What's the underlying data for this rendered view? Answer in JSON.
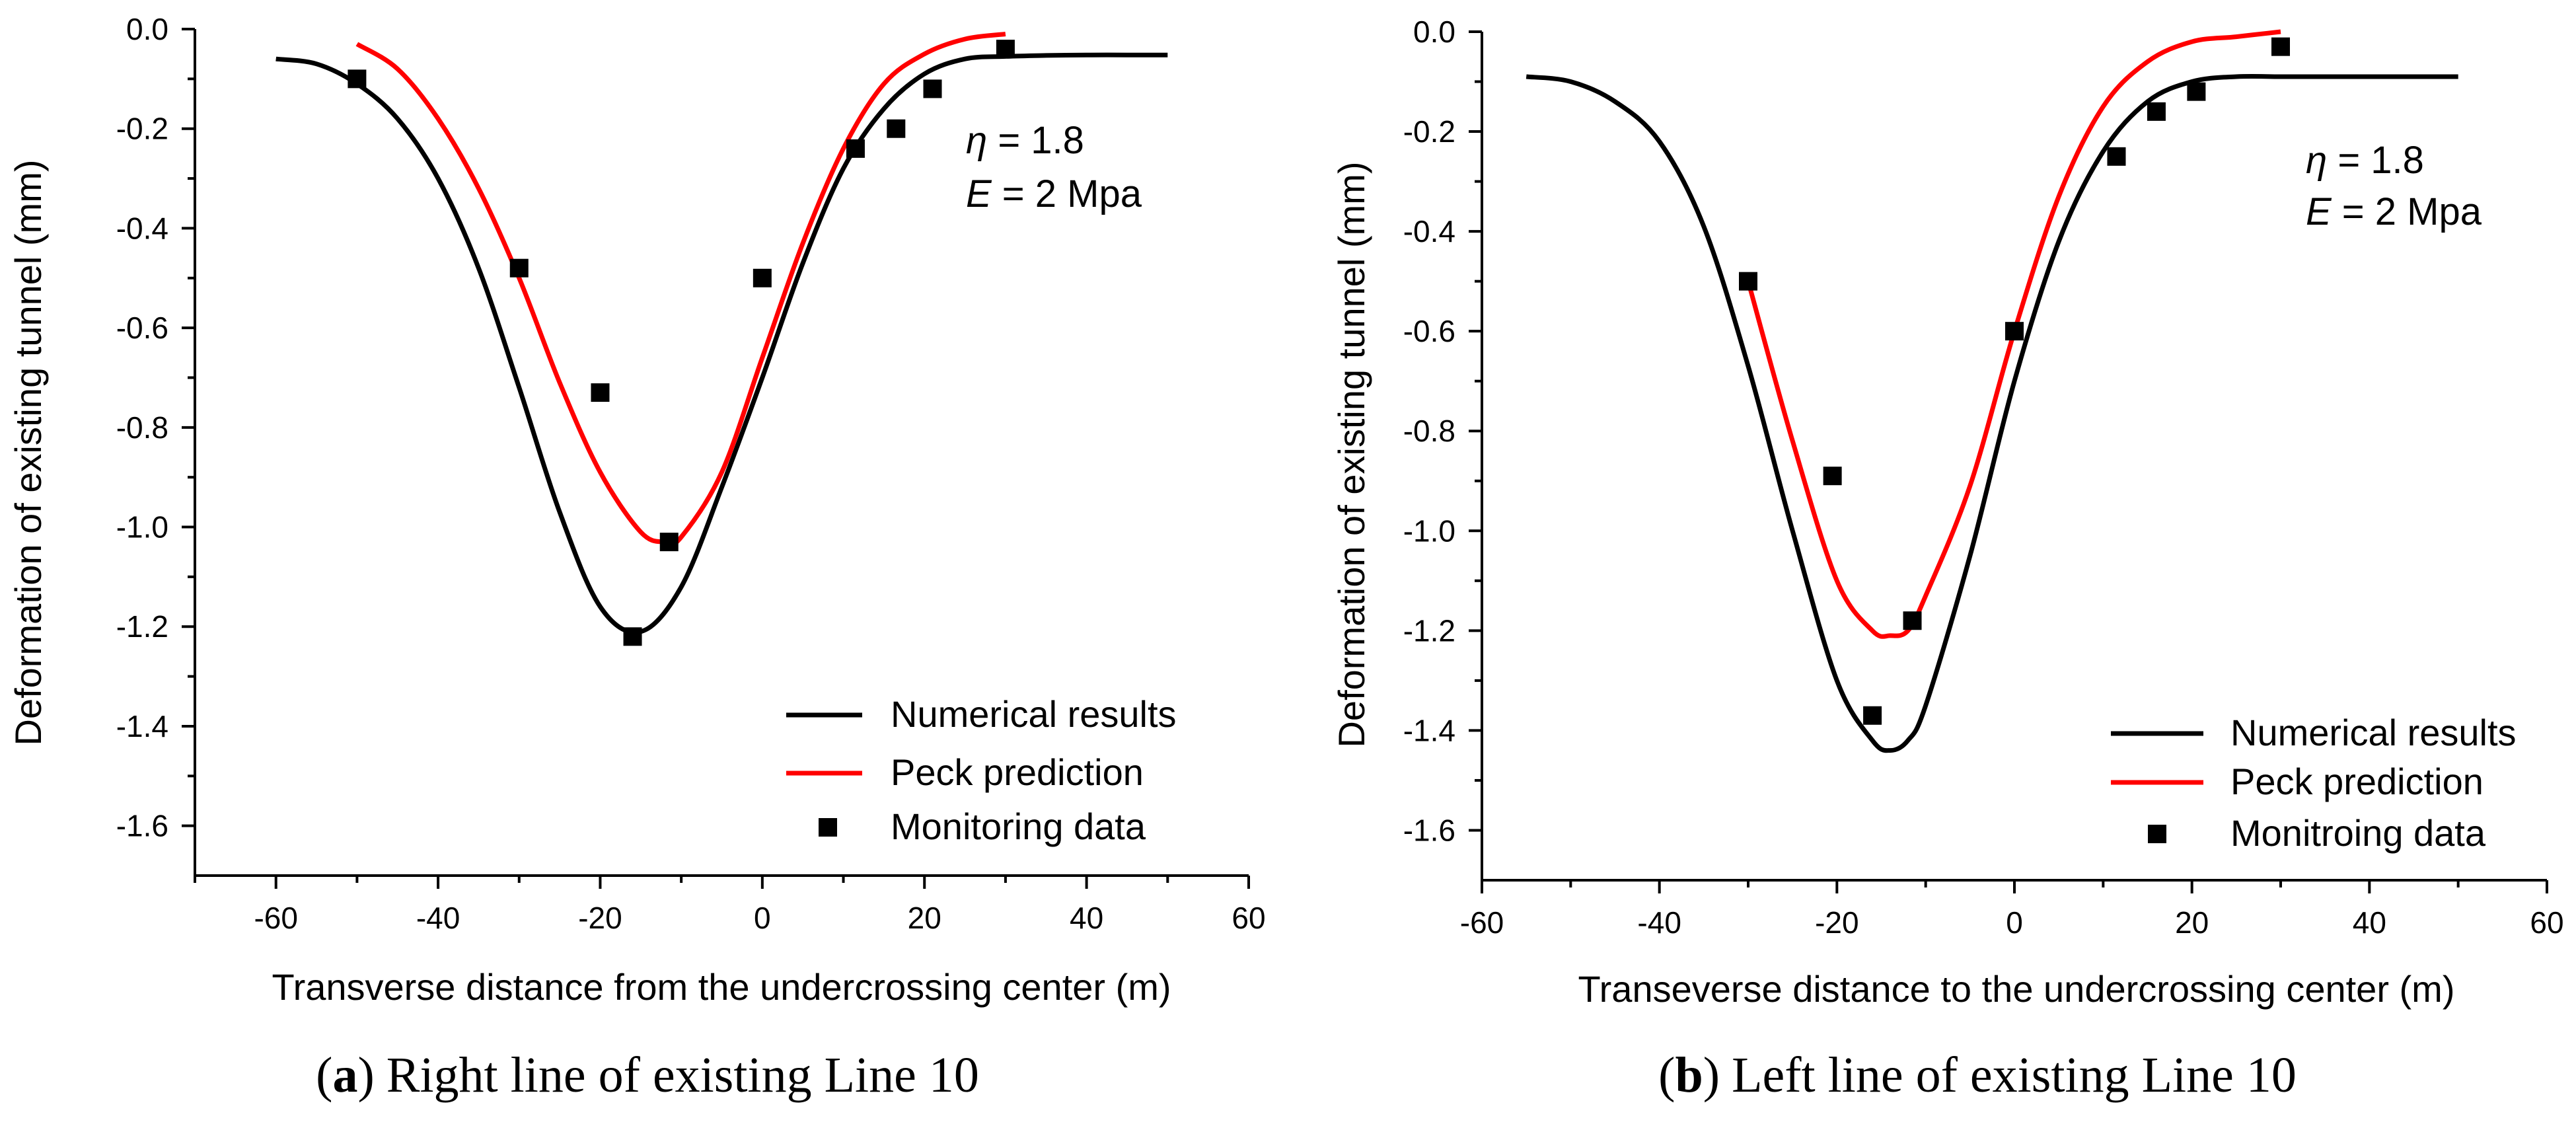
{
  "chart_data": [
    {
      "type": "line",
      "panel": "a",
      "caption": {
        "open": "(",
        "letter": "a",
        "close": ")",
        "text": "Right line of existing Line 10"
      },
      "xlabel": "Transverse distance from the undercrossing center (m)",
      "ylabel": "Deformation of existing tunnel (mm)",
      "xlim": [
        -70,
        60
      ],
      "ylim": [
        -1.7,
        0.0
      ],
      "xticks": [
        -60,
        -40,
        -20,
        0,
        20,
        40,
        60
      ],
      "yticks": [
        0.0,
        -0.2,
        -0.4,
        -0.6,
        -0.8,
        -1.0,
        -1.2,
        -1.4,
        -1.6
      ],
      "xtick_labels": [
        "-60",
        "-40",
        "-20",
        "0",
        "20",
        "40",
        "60"
      ],
      "ytick_labels": [
        "0.0",
        "-0.2",
        "-0.4",
        "-0.6",
        "-0.8",
        "-1.0",
        "-1.2",
        "-1.4",
        "-1.6"
      ],
      "annotation": {
        "eta_symbol": "η",
        "eta_rest": " = 1.8",
        "e_symbol": "E",
        "e_rest": " = 2 Mpa"
      },
      "legend": [
        "Numerical results",
        "Peck prediction",
        "Monitoring data"
      ],
      "legend_position": "bottom-right",
      "series": [
        {
          "name": "Numerical results",
          "kind": "line",
          "color": "#000000",
          "x": [
            -60,
            -55,
            -50,
            -45,
            -40,
            -35,
            -30,
            -25,
            -20,
            -15,
            -10,
            -5,
            0,
            5,
            10,
            15,
            20,
            25,
            30,
            35,
            40,
            45,
            50
          ],
          "y": [
            -0.06,
            -0.07,
            -0.11,
            -0.18,
            -0.3,
            -0.48,
            -0.72,
            -0.97,
            -1.16,
            -1.21,
            -1.12,
            -0.92,
            -0.7,
            -0.47,
            -0.28,
            -0.16,
            -0.09,
            -0.06,
            -0.055,
            -0.053,
            -0.052,
            -0.052,
            -0.052
          ]
        },
        {
          "name": "Peck prediction",
          "kind": "line",
          "color": "#ff0000",
          "x": [
            -50,
            -45,
            -40,
            -35,
            -30,
            -25,
            -20,
            -15,
            -12,
            -10,
            -5,
            0,
            5,
            10,
            15,
            20,
            25,
            30
          ],
          "y": [
            -0.03,
            -0.08,
            -0.18,
            -0.32,
            -0.5,
            -0.71,
            -0.89,
            -1.01,
            -1.03,
            -1.02,
            -0.89,
            -0.66,
            -0.43,
            -0.24,
            -0.11,
            -0.05,
            -0.02,
            -0.01
          ]
        },
        {
          "name": "Monitoring data",
          "kind": "scatter",
          "color": "#000000",
          "x": [
            -50,
            -30,
            -20,
            -16,
            -11.5,
            0,
            11.5,
            16.5,
            21,
            30
          ],
          "y": [
            -0.1,
            -0.48,
            -0.73,
            -1.22,
            -1.03,
            -0.5,
            -0.24,
            -0.2,
            -0.12,
            -0.04
          ]
        }
      ]
    },
    {
      "type": "line",
      "panel": "b",
      "caption": {
        "open": "(",
        "letter": "b",
        "close": ")",
        "text": "Left line of existing Line 10"
      },
      "xlabel": "Transeverse distance to the undercrossing center (m)",
      "ylabel": "Deformation of existing tunnel (mm)",
      "xlim": [
        -60,
        60
      ],
      "ylim": [
        -1.7,
        0.0
      ],
      "xticks": [
        -60,
        -40,
        -20,
        0,
        20,
        40,
        60
      ],
      "yticks": [
        0.0,
        -0.2,
        -0.4,
        -0.6,
        -0.8,
        -1.0,
        -1.2,
        -1.4,
        -1.6
      ],
      "xtick_labels": [
        "-60",
        "-40",
        "-20",
        "0",
        "20",
        "40",
        "60"
      ],
      "ytick_labels": [
        "0.0",
        "-0.2",
        "-0.4",
        "-0.6",
        "-0.8",
        "-1.0",
        "-1.2",
        "-1.4",
        "-1.6"
      ],
      "annotation": {
        "eta_symbol": "η",
        "eta_rest": " = 1.8",
        "e_symbol": "E",
        "e_rest": " = 2 Mpa"
      },
      "legend": [
        "Numerical results",
        "Peck prediction",
        "Monitroing data"
      ],
      "legend_position": "bottom-right",
      "series": [
        {
          "name": "Numerical results",
          "kind": "line",
          "color": "#000000",
          "x": [
            -55,
            -50,
            -45,
            -40,
            -35,
            -30,
            -25,
            -20,
            -16,
            -14,
            -12,
            -10,
            -5,
            0,
            5,
            10,
            15,
            20,
            25,
            30,
            35,
            40,
            45,
            50
          ],
          "y": [
            -0.09,
            -0.1,
            -0.14,
            -0.22,
            -0.39,
            -0.67,
            -1.0,
            -1.3,
            -1.42,
            -1.44,
            -1.42,
            -1.35,
            -1.05,
            -0.7,
            -0.42,
            -0.24,
            -0.14,
            -0.1,
            -0.09,
            -0.09,
            -0.09,
            -0.09,
            -0.09,
            -0.09
          ]
        },
        {
          "name": "Peck prediction",
          "kind": "line",
          "color": "#ff0000",
          "x": [
            -30,
            -25,
            -20,
            -16,
            -14,
            -12,
            -10,
            -5,
            0,
            5,
            10,
            15,
            20,
            25,
            30
          ],
          "y": [
            -0.5,
            -0.82,
            -1.1,
            -1.2,
            -1.21,
            -1.2,
            -1.13,
            -0.91,
            -0.6,
            -0.33,
            -0.15,
            -0.06,
            -0.02,
            -0.01,
            0.0
          ]
        },
        {
          "name": "Monitroing data",
          "kind": "scatter",
          "color": "#000000",
          "x": [
            -30,
            -20.5,
            -16,
            -11.5,
            0,
            11.5,
            16,
            20.5,
            30
          ],
          "y": [
            -0.5,
            -0.89,
            -1.37,
            -1.18,
            -0.6,
            -0.25,
            -0.16,
            -0.12,
            -0.03
          ]
        }
      ]
    }
  ]
}
